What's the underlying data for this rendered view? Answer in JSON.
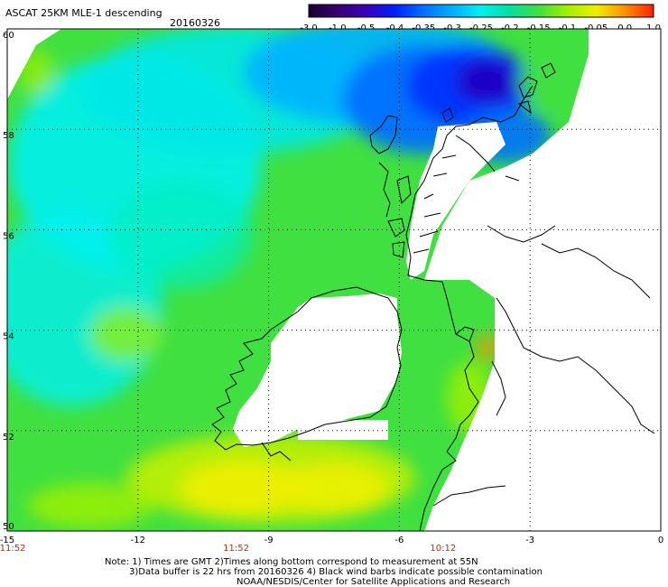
{
  "header": {
    "title": "ASCAT 25KM MLE-1 descending",
    "date": "20160326"
  },
  "colorbar": {
    "labels": [
      "-3.0",
      "-1.0",
      "-0.5",
      "-0.4",
      "-0.35",
      "-0.3",
      "-0.25",
      "-0.2",
      "-0.15",
      "-0.1",
      "-0.05",
      "0.0",
      "1.0"
    ],
    "colors": [
      "#1a0030",
      "#3a0070",
      "#3b00b8",
      "#0020ff",
      "#0070ff",
      "#00b0ff",
      "#00f0f0",
      "#00e0a0",
      "#40e040",
      "#a0f000",
      "#f0f000",
      "#ff9000",
      "#ff2000"
    ]
  },
  "axes": {
    "lat_labels": [
      "60",
      "58",
      "56",
      "54",
      "52",
      "50"
    ],
    "lon_labels": [
      "-15",
      "-12",
      "-9",
      "-6",
      "-3",
      "0"
    ]
  },
  "times": [
    "11:52",
    "11:52",
    "10:12"
  ],
  "time_color": "#d02000",
  "notes": [
    "Note: 1) Times are GMT 2)Times along bottom correspond to measurement at 55N",
    "3)Data buffer is 22 hrs from 20160326 4) Black wind barbs indicate possible contamination",
    "NOAA/NESDIS/Center for Satellite Applications and Research"
  ]
}
